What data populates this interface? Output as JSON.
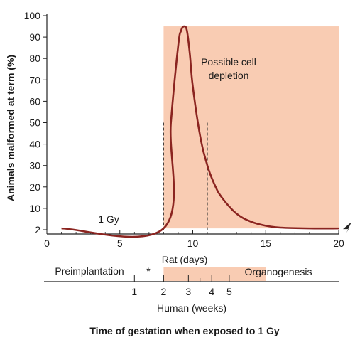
{
  "chart_data": {
    "type": "line",
    "ylabel": "Animals malformed at term (%)",
    "xlabel": "Rat (days)",
    "secondary_xlabel": "Human (weeks)",
    "caption": "Time of gestation when exposed to 1 Gy",
    "xlim": [
      0,
      20
    ],
    "ylim": [
      2,
      100
    ],
    "x_ticks": [
      "0",
      "5",
      "10",
      "15",
      "20"
    ],
    "x_tick_values": [
      0,
      5,
      10,
      15,
      20
    ],
    "y_ticks": [
      "2",
      "10",
      "20",
      "30",
      "40",
      "50",
      "60",
      "70",
      "80",
      "90",
      "100"
    ],
    "y_tick_values": [
      2,
      10,
      20,
      30,
      40,
      50,
      60,
      70,
      80,
      90,
      100
    ],
    "series": [
      {
        "color": "#8b2420",
        "x": [
          1,
          8,
          8.5,
          9,
          9.2,
          9.4,
          9.6,
          9.8,
          10,
          10.5,
          11,
          11.5,
          12,
          13,
          14,
          15,
          16,
          18,
          20
        ],
        "y": [
          2.5,
          2.5,
          50,
          86,
          93,
          95,
          93,
          82,
          67,
          44,
          30,
          21,
          15,
          8,
          5,
          3.5,
          2.8,
          2.5,
          2.5
        ]
      }
    ],
    "shaded_region": {
      "color": "#f9ccb3",
      "x_start": 8,
      "x_end": 20,
      "top": 95
    },
    "dashed_lines_x": [
      8,
      11
    ],
    "annotations": {
      "dose_label": "1 Gy",
      "shade_label_line1": "Possible cell",
      "shade_label_line2": "depletion"
    },
    "timeline": {
      "preimplantation": "Preimplantation",
      "asterisk": "*",
      "organogenesis": "Organogenesis",
      "human_weeks": [
        {
          "label": "1",
          "rat_day": 6
        },
        {
          "label": "2",
          "rat_day": 8
        },
        {
          "label": "3",
          "rat_day": 9.7
        },
        {
          "label": "4",
          "rat_day": 11.3
        },
        {
          "label": "5",
          "rat_day": 12.5
        }
      ],
      "organogenesis_x_start": 8,
      "organogenesis_x_end": 15
    }
  }
}
